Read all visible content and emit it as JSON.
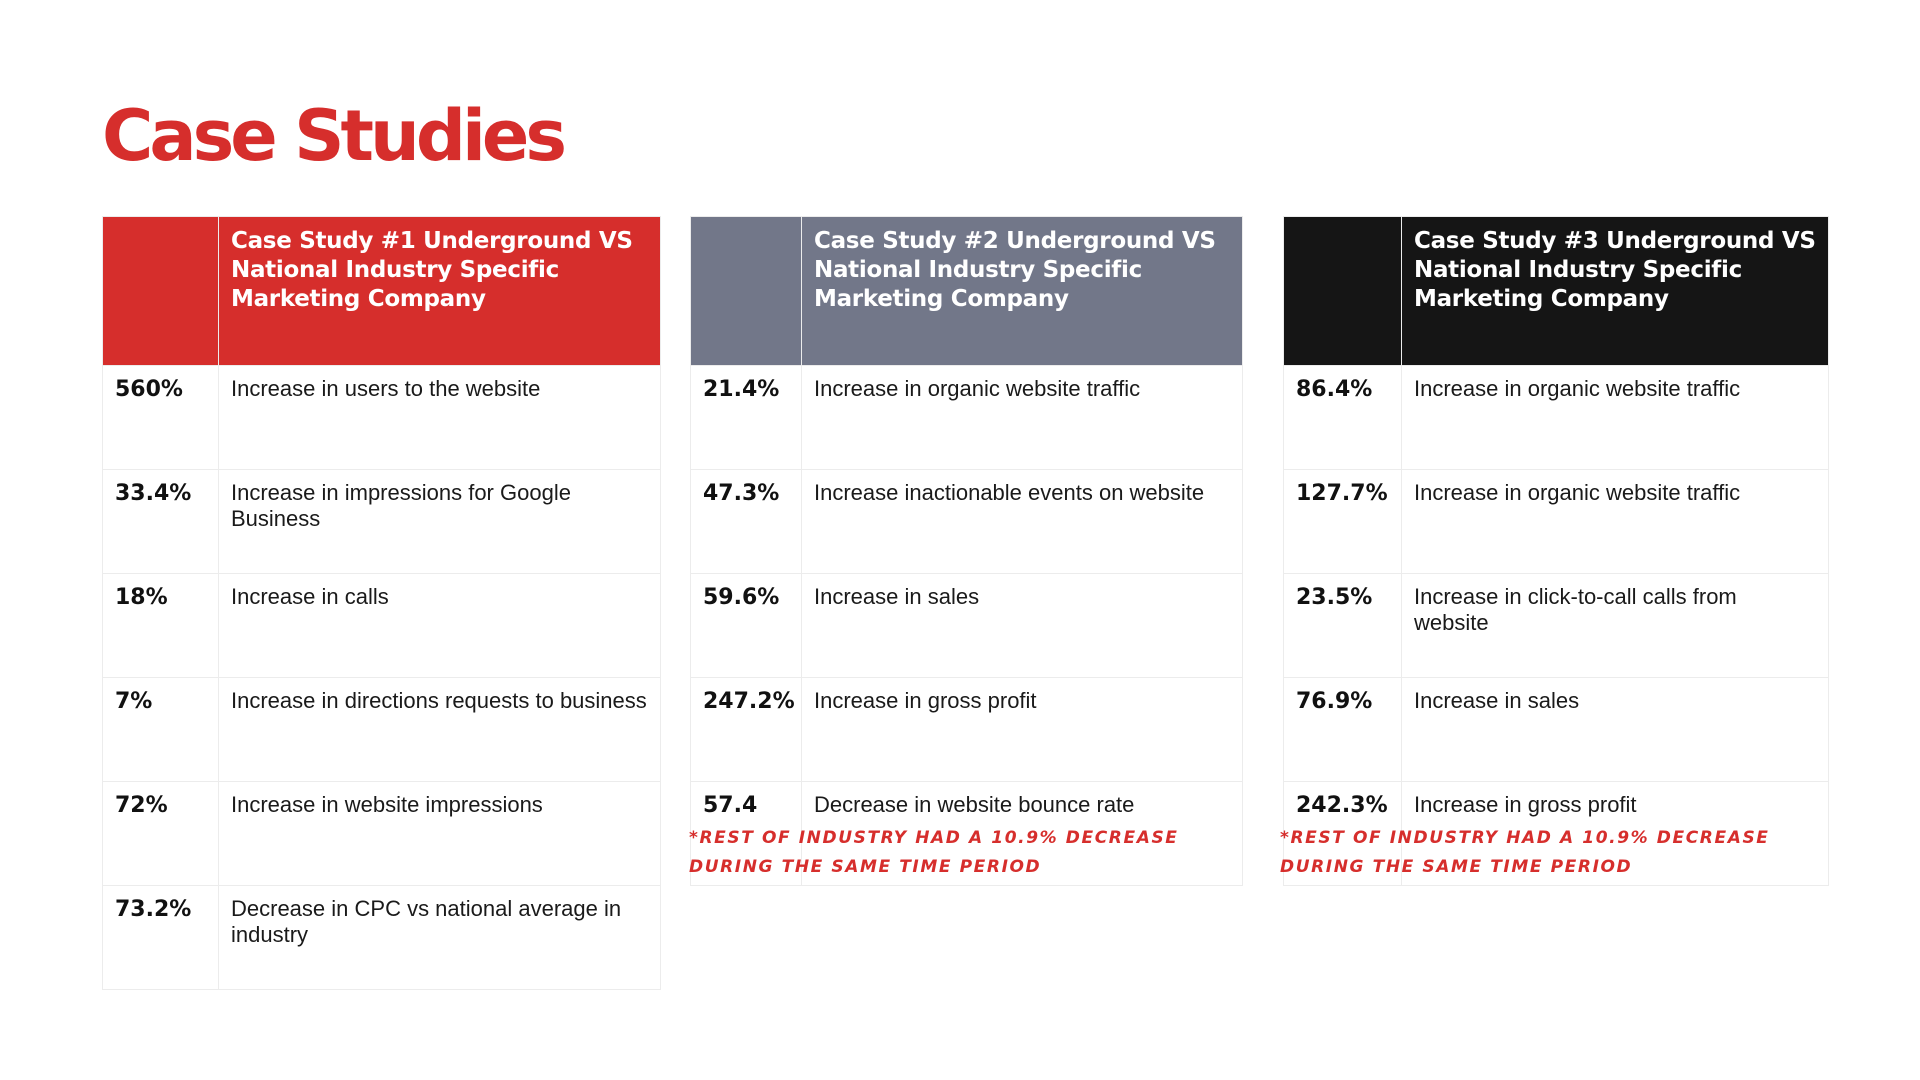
{
  "page": {
    "title": "Case Studies"
  },
  "colors": {
    "title": "#d62e2c",
    "study1_header": "#d62e2c",
    "study2_header": "#727789",
    "study3_header": "#151515",
    "footnote": "#d62e2c"
  },
  "studies": [
    {
      "heading": "Case Study #1 Underground  VS National Industry Specific Marketing Company",
      "rows": [
        {
          "metric": "560%",
          "description": "Increase in users to the website"
        },
        {
          "metric": "33.4%",
          "description": "Increase in impressions for Google Business"
        },
        {
          "metric": "18%",
          "description": "Increase in calls"
        },
        {
          "metric": "7%",
          "description": "Increase in directions requests to business"
        },
        {
          "metric": "72%",
          "description": "Increase in website impressions"
        },
        {
          "metric": "73.2%",
          "description": "Decrease in CPC vs national average in industry"
        }
      ]
    },
    {
      "heading": "Case Study #2 Underground  VS National Industry Specific Marketing Company",
      "rows": [
        {
          "metric": "21.4%",
          "description": "Increase in organic website traffic"
        },
        {
          "metric": "47.3%",
          "description": "Increase inactionable events on website"
        },
        {
          "metric": "59.6%",
          "description": "Increase in sales"
        },
        {
          "metric": "247.2%",
          "description": "Increase in gross profit"
        },
        {
          "metric": "57.4",
          "description": "Decrease in website bounce rate"
        }
      ],
      "footnote": "*REST OF INDUSTRY HAD A 10.9% DECREASE DURING THE SAME TIME PERIOD"
    },
    {
      "heading": "Case Study #3 Underground  VS National Industry Specific Marketing Company",
      "rows": [
        {
          "metric": "86.4%",
          "description": "Increase in organic website traffic"
        },
        {
          "metric": "127.7%",
          "description": "Increase in organic website traffic"
        },
        {
          "metric": "23.5%",
          "description": "Increase in click-to-call calls from website"
        },
        {
          "metric": "76.9%",
          "description": "Increase in sales"
        },
        {
          "metric": "242.3%",
          "description": "Increase in gross profit"
        }
      ],
      "footnote": "*REST OF INDUSTRY HAD A 10.9% DECREASE DURING THE SAME TIME PERIOD"
    }
  ]
}
